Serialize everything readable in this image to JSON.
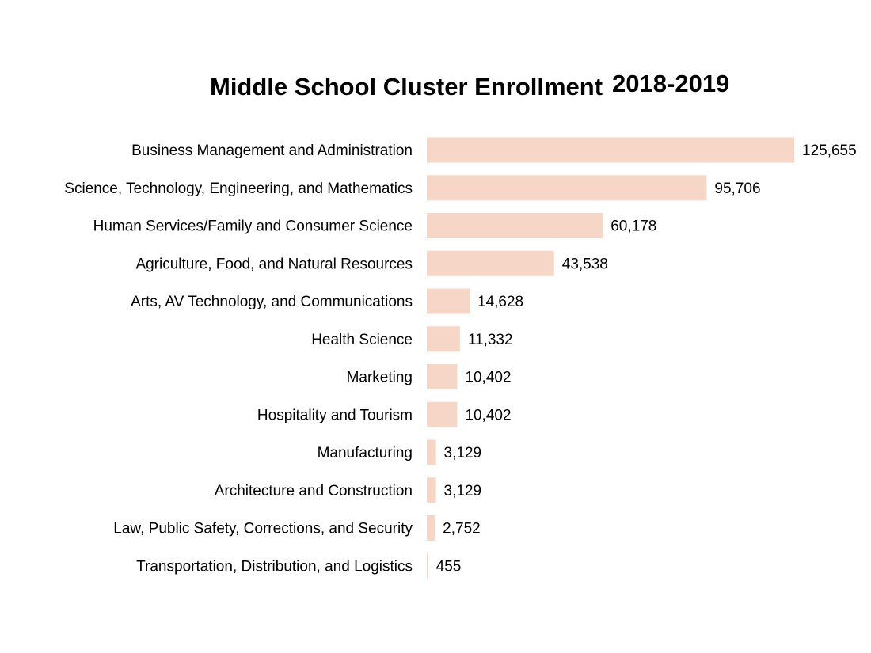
{
  "chart_data": {
    "type": "bar",
    "orientation": "horizontal",
    "title": "Middle School Cluster Enrollment",
    "title_year": "2018-2019",
    "categories": [
      "Business Management and Administration",
      "Science, Technology, Engineering, and Mathematics",
      "Human Services/Family and Consumer Science",
      "Agriculture, Food, and Natural Resources",
      "Arts, AV Technology, and Communications",
      "Health Science",
      "Marketing",
      "Hospitality and Tourism",
      "Manufacturing",
      "Architecture and Construction",
      "Law, Public Safety, Corrections, and Security",
      "Transportation, Distribution, and Logistics"
    ],
    "values": [
      125655,
      95706,
      60178,
      43538,
      14628,
      11332,
      10402,
      10402,
      3129,
      3129,
      2752,
      455
    ],
    "value_labels": [
      "125,655",
      "95,706",
      "60,178",
      "43,538",
      "14,628",
      "11,332",
      "10,402",
      "10,402",
      "3,129",
      "3,129",
      "2,752",
      "455"
    ],
    "xlim": [
      0,
      125655
    ],
    "grid": false,
    "legend": "none",
    "bar_color": "#f6d6c6"
  }
}
